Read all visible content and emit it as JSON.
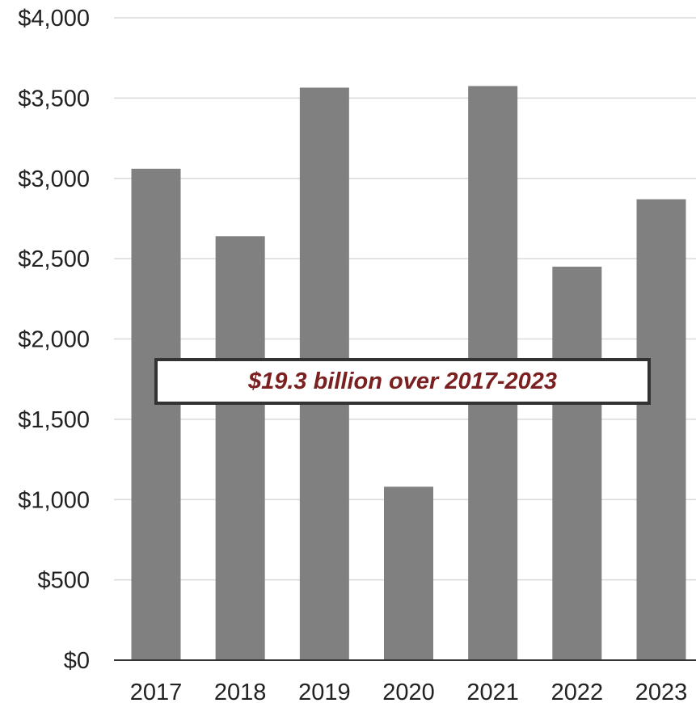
{
  "chart_data": {
    "type": "bar",
    "categories": [
      "2017",
      "2018",
      "2019",
      "2020",
      "2021",
      "2022",
      "2023"
    ],
    "values": [
      3060,
      2640,
      3565,
      1080,
      3575,
      2450,
      2870
    ],
    "ylim": [
      0,
      4000
    ],
    "yticks": [
      0,
      500,
      1000,
      1500,
      2000,
      2500,
      3000,
      3500,
      4000
    ],
    "ytick_labels": [
      "$0",
      "$500",
      "$1,000",
      "$1,500",
      "$2,000",
      "$2,500",
      "$3,000",
      "$3,500",
      "$4,000"
    ],
    "grid": true,
    "legend": "none",
    "annotation": "$19.3 billion over 2017-2023"
  },
  "colors": {
    "bar": "#808080",
    "grid": "#d9d9d9",
    "axis": "#333333",
    "annotation_text": "#7a2020"
  }
}
